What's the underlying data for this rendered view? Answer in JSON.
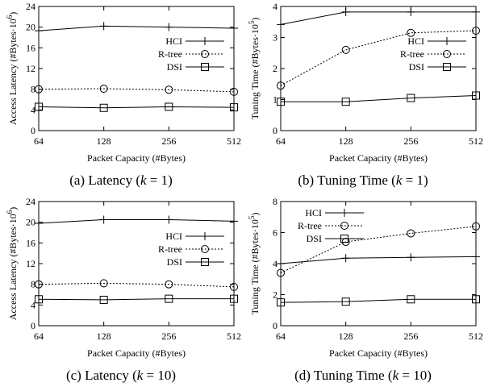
{
  "chart_data": [
    {
      "type": "line",
      "caption": {
        "prefix": "(a) Latency (",
        "var": "k",
        "eq": " = 1)"
      },
      "xlabel": "Packet Capacity (#Bytes)",
      "ylabel": "Access Latency (#Bytes·10",
      "ylabel_exp": "6",
      "ylabel_close": ")",
      "categories": [
        "64",
        "128",
        "256",
        "512"
      ],
      "ylim": [
        0,
        24
      ],
      "yticks": [
        "0",
        "4",
        "8",
        "12",
        "16",
        "20",
        "24"
      ],
      "legend_position": "right",
      "series": [
        {
          "name": "HCI",
          "marker": "plus",
          "dash": "",
          "values": [
            19.3,
            20.2,
            20.0,
            19.8
          ]
        },
        {
          "name": "R-tree",
          "marker": "circle",
          "dash": "2,2",
          "values": [
            8.0,
            8.1,
            7.9,
            7.5
          ]
        },
        {
          "name": "DSI",
          "marker": "square",
          "dash": "",
          "values": [
            4.6,
            4.4,
            4.6,
            4.5
          ]
        }
      ]
    },
    {
      "type": "line",
      "caption": {
        "prefix": "(b) Tuning Time (",
        "var": "k",
        "eq": " = 1)"
      },
      "xlabel": "Packet Capacity (#Bytes)",
      "ylabel": "Tuning Time (#Bytes·10",
      "ylabel_exp": "5",
      "ylabel_close": ")",
      "categories": [
        "64",
        "128",
        "256",
        "512"
      ],
      "ylim": [
        0,
        4
      ],
      "yticks": [
        "0",
        "1",
        "2",
        "3",
        "4"
      ],
      "legend_position": "right",
      "series": [
        {
          "name": "HCI",
          "marker": "plus",
          "dash": "",
          "values": [
            3.42,
            3.82,
            3.82,
            3.82
          ]
        },
        {
          "name": "R-tree",
          "marker": "circle",
          "dash": "2,2",
          "values": [
            1.45,
            2.6,
            3.15,
            3.22
          ]
        },
        {
          "name": "DSI",
          "marker": "square",
          "dash": "",
          "values": [
            0.93,
            0.93,
            1.05,
            1.13
          ]
        }
      ]
    },
    {
      "type": "line",
      "caption": {
        "prefix": "(c) Latency (",
        "var": "k",
        "eq": " = 10)"
      },
      "xlabel": "Packet Capacity (#Bytes)",
      "ylabel": "Access Latency (#Bytes·10",
      "ylabel_exp": "6",
      "ylabel_close": ")",
      "categories": [
        "64",
        "128",
        "256",
        "512"
      ],
      "ylim": [
        0,
        24
      ],
      "yticks": [
        "0",
        "4",
        "8",
        "12",
        "16",
        "20",
        "24"
      ],
      "legend_position": "right",
      "series": [
        {
          "name": "HCI",
          "marker": "plus",
          "dash": "",
          "values": [
            19.8,
            20.5,
            20.5,
            20.2
          ]
        },
        {
          "name": "R-tree",
          "marker": "circle",
          "dash": "2,2",
          "values": [
            8.0,
            8.2,
            8.0,
            7.5
          ]
        },
        {
          "name": "DSI",
          "marker": "square",
          "dash": "",
          "values": [
            5.1,
            5.0,
            5.2,
            5.2
          ]
        }
      ]
    },
    {
      "type": "line",
      "caption": {
        "prefix": "(d) Tuning Time (",
        "var": "k",
        "eq": " = 10)"
      },
      "xlabel": "Packet Capacity (#Bytes)",
      "ylabel": "Tuning Time (#Bytes·10",
      "ylabel_exp": "5",
      "ylabel_close": ")",
      "categories": [
        "64",
        "128",
        "256",
        "512"
      ],
      "ylim": [
        0,
        8
      ],
      "yticks": [
        "0",
        "2",
        "4",
        "6",
        "8"
      ],
      "legend_position": "top-left",
      "series": [
        {
          "name": "HCI",
          "marker": "plus",
          "dash": "",
          "values": [
            4.0,
            4.35,
            4.4,
            4.45
          ]
        },
        {
          "name": "R-tree",
          "marker": "circle",
          "dash": "2,2",
          "values": [
            3.4,
            5.4,
            5.95,
            6.4
          ]
        },
        {
          "name": "DSI",
          "marker": "square",
          "dash": "",
          "values": [
            1.5,
            1.55,
            1.7,
            1.7
          ]
        }
      ]
    }
  ]
}
